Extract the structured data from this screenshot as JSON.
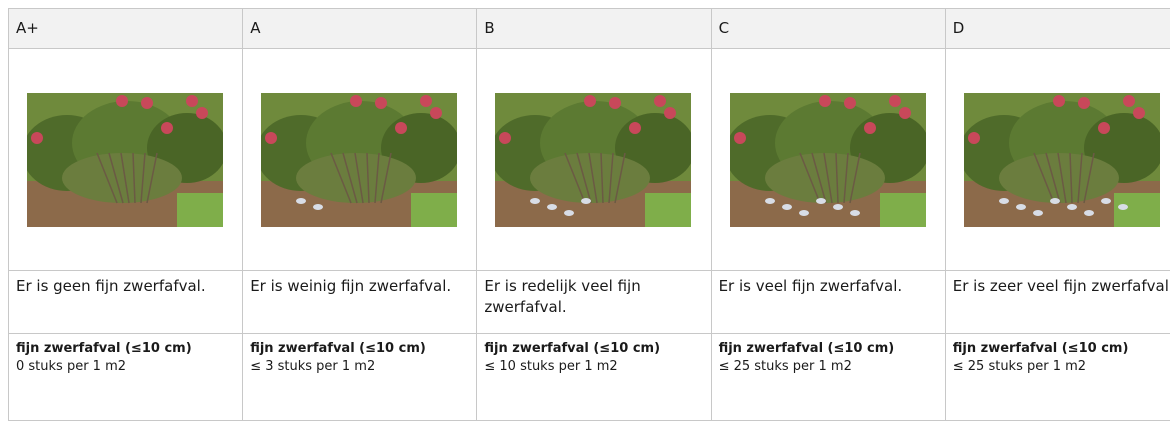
{
  "table": {
    "headers": [
      "A+",
      "A",
      "B",
      "C",
      "D"
    ],
    "descriptions": [
      "Er is geen fijn zwerfafval.",
      "Er is weinig fijn zwerfafval.",
      "Er is redelijk veel fijn zwerfafval.",
      "Er is veel fijn zwerfafval.",
      "Er is zeer veel fijn zwerfafval."
    ],
    "criteria": [
      "fijn zwerfafval (≤10 cm)",
      "fijn zwerfafval (≤10 cm)",
      "fijn zwerfafval (≤10 cm)",
      "fijn zwerfafval (≤10 cm)",
      "fijn zwerfafval (≤10 cm)"
    ],
    "counts": [
      "0 stuks per 1 m2",
      "≤ 3 stuks per 1 m2",
      "≤ 10 stuks per 1 m2",
      "≤ 25 stuks per 1 m2",
      "≤ 25 stuks per 1 m2"
    ]
  }
}
